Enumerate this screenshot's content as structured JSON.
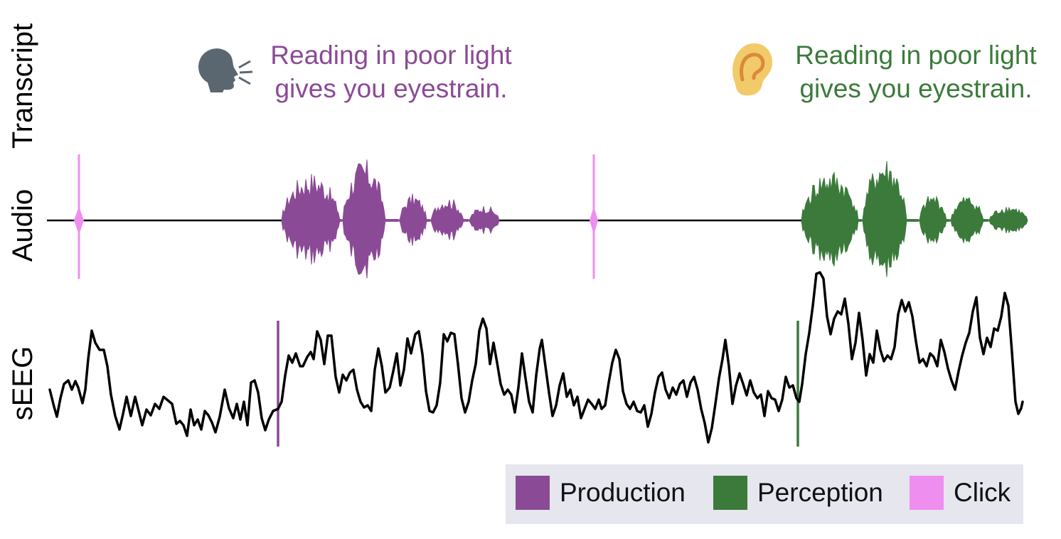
{
  "rows": {
    "transcript_label": "Transcript",
    "audio_label": "Audio",
    "seeg_label": "sEEG"
  },
  "production": {
    "line1": "Reading in poor light",
    "line2": "gives you eyestrain.",
    "icon": "speaking-head-icon"
  },
  "perception": {
    "line1": "Reading in poor light",
    "line2": "gives you eyestrain.",
    "icon": "ear-icon"
  },
  "legend": {
    "items": [
      {
        "label": "Production",
        "color": "#8b4a96"
      },
      {
        "label": "Perception",
        "color": "#3b7a3b"
      },
      {
        "label": "Click",
        "color": "#ee8ff0"
      }
    ]
  },
  "colors": {
    "production": "#8b4a96",
    "perception": "#3b7a3b",
    "click": "#ee8ff0",
    "signal": "#000000",
    "speaker_icon": "#5b6770",
    "ear_icon": "#f3ca6a"
  }
}
